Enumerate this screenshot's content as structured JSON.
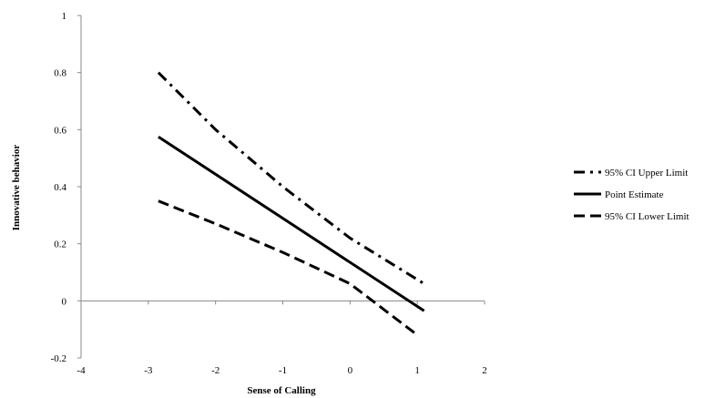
{
  "chart_data": {
    "type": "line",
    "title": "",
    "xlabel": "Sense of Calling",
    "ylabel": "Innovative behavior",
    "xlim": [
      -4,
      2
    ],
    "ylim": [
      -0.2,
      1
    ],
    "x_ticks": [
      -4,
      -3,
      -2,
      -1,
      0,
      1,
      2
    ],
    "x_tick_labels": [
      "-4",
      "-3",
      "-2",
      "-1",
      "0",
      "1",
      "2"
    ],
    "y_ticks": [
      -0.2,
      0,
      0.2,
      0.4,
      0.6,
      0.8,
      1
    ],
    "y_tick_labels": [
      "-0.2",
      "0",
      "0.2",
      "0.4",
      "0.6",
      "0.8",
      "1"
    ],
    "grid": false,
    "legend_position": "right",
    "series": [
      {
        "name": "95% CI Upper Limit",
        "style": "dash-dot",
        "color": "#000000",
        "x": [
          -2.85,
          -2.0,
          -1.0,
          0.0,
          1.1
        ],
        "y": [
          0.8,
          0.6,
          0.4,
          0.22,
          0.06
        ]
      },
      {
        "name": "Point Estimate",
        "style": "solid",
        "color": "#000000",
        "x": [
          -2.85,
          1.1
        ],
        "y": [
          0.575,
          -0.035
        ]
      },
      {
        "name": "95% CI Lower Limit",
        "style": "dashed",
        "color": "#000000",
        "x": [
          -2.85,
          -2.0,
          -1.0,
          0.0,
          1.0
        ],
        "y": [
          0.35,
          0.27,
          0.17,
          0.06,
          -0.12
        ]
      }
    ]
  }
}
